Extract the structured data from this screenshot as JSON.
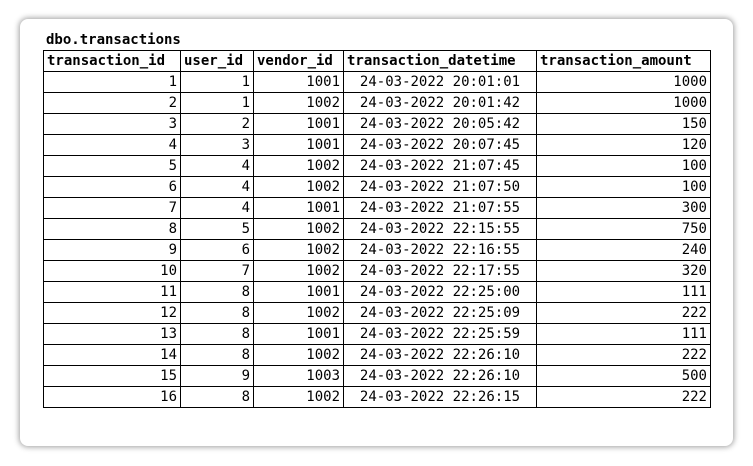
{
  "table": {
    "title": "dbo.transactions",
    "columns": [
      "transaction_id",
      "user_id",
      "vendor_id",
      "transaction_datetime",
      "transaction_amount"
    ],
    "rows": [
      [
        "1",
        "1",
        "1001",
        "24-03-2022 20:01:01",
        "1000"
      ],
      [
        "2",
        "1",
        "1002",
        "24-03-2022 20:01:42",
        "1000"
      ],
      [
        "3",
        "2",
        "1001",
        "24-03-2022 20:05:42",
        "150"
      ],
      [
        "4",
        "3",
        "1001",
        "24-03-2022 20:07:45",
        "120"
      ],
      [
        "5",
        "4",
        "1002",
        "24-03-2022 21:07:45",
        "100"
      ],
      [
        "6",
        "4",
        "1002",
        "24-03-2022 21:07:50",
        "100"
      ],
      [
        "7",
        "4",
        "1001",
        "24-03-2022 21:07:55",
        "300"
      ],
      [
        "8",
        "5",
        "1002",
        "24-03-2022 22:15:55",
        "750"
      ],
      [
        "9",
        "6",
        "1002",
        "24-03-2022 22:16:55",
        "240"
      ],
      [
        "10",
        "7",
        "1002",
        "24-03-2022 22:17:55",
        "320"
      ],
      [
        "11",
        "8",
        "1001",
        "24-03-2022 22:25:00",
        "111"
      ],
      [
        "12",
        "8",
        "1002",
        "24-03-2022 22:25:09",
        "222"
      ],
      [
        "13",
        "8",
        "1001",
        "24-03-2022 22:25:59",
        "111"
      ],
      [
        "14",
        "8",
        "1002",
        "24-03-2022 22:26:10",
        "222"
      ],
      [
        "15",
        "9",
        "1003",
        "24-03-2022 22:26:10",
        "500"
      ],
      [
        "16",
        "8",
        "1002",
        "24-03-2022 22:26:15",
        "222"
      ]
    ]
  }
}
